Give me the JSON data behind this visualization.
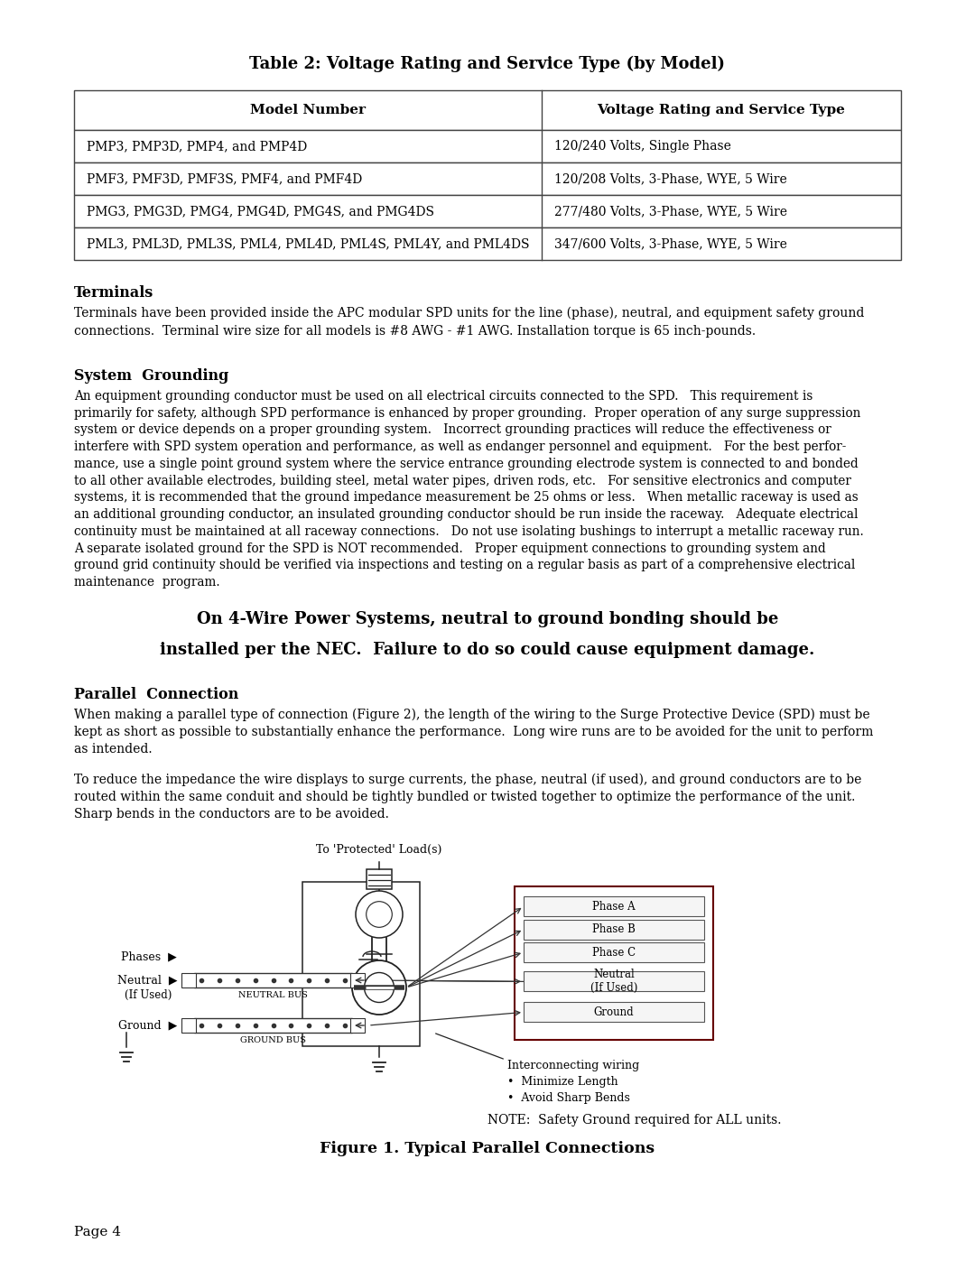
{
  "title": "Table 2: Voltage Rating and Service Type (by Model)",
  "table_headers": [
    "Model Number",
    "Voltage Rating and Service Type"
  ],
  "table_rows": [
    [
      "PMP3, PMP3D, PMP4, and PMP4D",
      "120/240 Volts, Single Phase"
    ],
    [
      "PMF3, PMF3D, PMF3S, PMF4, and PMF4D",
      "120/208 Volts, 3-Phase, WYE, 5 Wire"
    ],
    [
      "PMG3, PMG3D, PMG4, PMG4D, PMG4S, and PMG4DS",
      "277/480 Volts, 3-Phase, WYE, 5 Wire"
    ],
    [
      "PML3, PML3D, PML3S, PML4, PML4D, PML4S, PML4Y, and PML4DS",
      "347/600 Volts, 3-Phase, WYE, 5 Wire"
    ]
  ],
  "section_terminals_title": "Terminals",
  "section_terminals_body": "Terminals have been provided inside the APC modular SPD units for the line (phase), neutral, and equipment safety ground\nconnections.  Terminal wire size for all models is #8 AWG - #1 AWG. Installation torque is 65 inch-pounds.",
  "section_grounding_title": "System  Grounding",
  "section_grounding_body": "An equipment grounding conductor must be used on all electrical circuits connected to the SPD.   This requirement is\nprimarily for safety, although SPD performance is enhanced by proper grounding.  Proper operation of any surge suppression\nsystem or device depends on a proper grounding system.   Incorrect grounding practices will reduce the effectiveness or\ninterfere with SPD system operation and performance, as well as endanger personnel and equipment.   For the best perfor-\nmance, use a single point ground system where the service entrance grounding electrode system is connected to and bonded\nto all other available electrodes, building steel, metal water pipes, driven rods, etc.   For sensitive electronics and computer\nsystems, it is recommended that the ground impedance measurement be 25 ohms or less.   When metallic raceway is used as\nan additional grounding conductor, an insulated grounding conductor should be run inside the raceway.   Adequate electrical\ncontinuity must be maintained at all raceway connections.   Do not use isolating bushings to interrupt a metallic raceway run.\nA separate isolated ground for the SPD is NOT recommended.   Proper equipment connections to grounding system and\nground grid continuity should be verified via inspections and testing on a regular basis as part of a comprehensive electrical\nmaintenance  program.",
  "callout_line1": "On 4-Wire Power Systems, neutral to ground bonding should be",
  "callout_line2": "installed per the NEC.  Failure to do so could cause equipment damage.",
  "section_parallel_title": "Parallel  Connection",
  "section_parallel_body1": "When making a parallel type of connection (Figure 2), the length of the wiring to the Surge Protective Device (SPD) must be\nkept as short as possible to substantially enhance the performance.  Long wire runs are to be avoided for the unit to perform\nas intended.",
  "section_parallel_body2": "To reduce the impedance the wire displays to surge currents, the phase, neutral (if used), and ground conductors are to be\nrouted within the same conduit and should be tightly bundled or twisted together to optimize the performance of the unit.\nSharp bends in the conductors are to be avoided.",
  "figure_caption": "Figure 1. Typical Parallel Connections",
  "page_label": "Page 4",
  "bg_color": "#ffffff",
  "text_color": "#000000"
}
